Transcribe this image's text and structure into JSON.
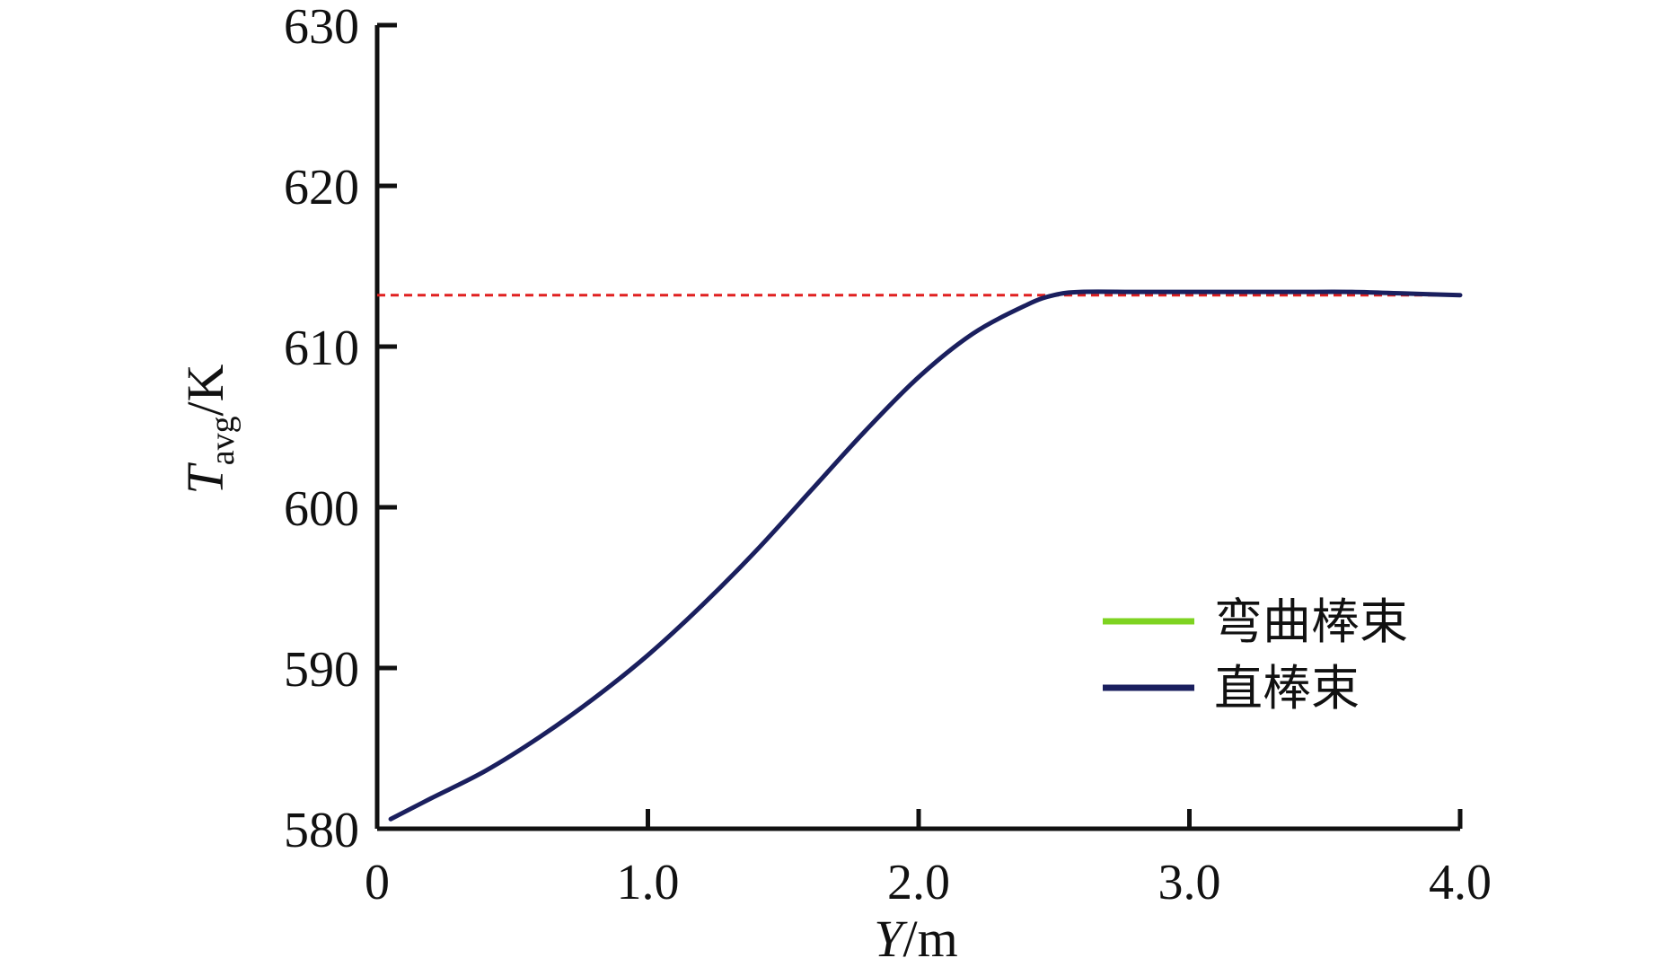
{
  "chart_data": {
    "type": "line",
    "title": "",
    "xlabel": {
      "var": "Y",
      "unit": "/m"
    },
    "ylabel": {
      "var": "T",
      "sub": "avg",
      "unit": "/K"
    },
    "xlim": [
      0,
      4.0
    ],
    "ylim": [
      580,
      630
    ],
    "xticks": [
      0,
      1.0,
      2.0,
      3.0,
      4.0
    ],
    "xtick_labels": [
      "0",
      "1.0",
      "2.0",
      "3.0",
      "4.0"
    ],
    "yticks": [
      580,
      590,
      600,
      610,
      620,
      630
    ],
    "ytick_labels": [
      "580",
      "590",
      "600",
      "610",
      "620",
      "630"
    ],
    "grid": false,
    "legend_position": "lower-right",
    "x": [
      0.05,
      0.2,
      0.4,
      0.6,
      0.8,
      1.0,
      1.2,
      1.4,
      1.6,
      1.8,
      2.0,
      2.2,
      2.4,
      2.5,
      2.6,
      2.8,
      3.0,
      3.2,
      3.4,
      3.6,
      3.8,
      4.0
    ],
    "series": [
      {
        "name": "弯曲棒束",
        "color": "#7ed321",
        "values": [
          580.6,
          581.9,
          583.6,
          585.7,
          588.1,
          590.8,
          593.9,
          597.3,
          601.0,
          604.7,
          608.1,
          610.8,
          612.6,
          613.2,
          613.4,
          613.4,
          613.4,
          613.4,
          613.4,
          613.4,
          613.3,
          613.2
        ]
      },
      {
        "name": "直棒束",
        "color": "#1a1f5e",
        "values": [
          580.6,
          581.9,
          583.6,
          585.7,
          588.1,
          590.8,
          593.9,
          597.3,
          601.0,
          604.7,
          608.1,
          610.8,
          612.6,
          613.2,
          613.4,
          613.4,
          613.4,
          613.4,
          613.4,
          613.4,
          613.3,
          613.2
        ]
      }
    ],
    "reference_line": {
      "y": 613.2,
      "style": "dashed",
      "color": "#e02020"
    }
  }
}
